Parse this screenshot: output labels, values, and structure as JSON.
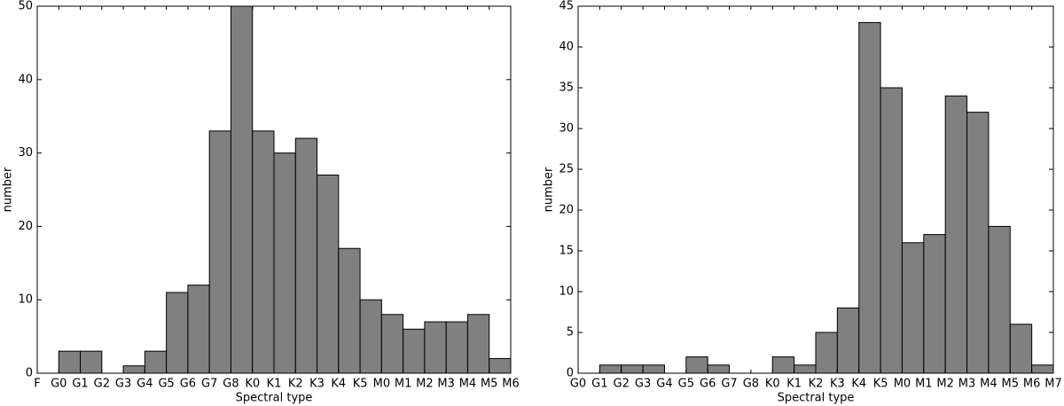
{
  "chart_data": [
    {
      "type": "histogram",
      "xlabel": "Spectral type",
      "ylabel": "number",
      "bins": [
        "F",
        "G0",
        "G1",
        "G2",
        "G3",
        "G4",
        "G5",
        "G6",
        "G7",
        "G8",
        "K0",
        "K1",
        "K2",
        "K3",
        "K4",
        "K5",
        "M0",
        "M1",
        "M2",
        "M3",
        "M4",
        "M5",
        "M6"
      ],
      "values": [
        0,
        3,
        3,
        0,
        1,
        3,
        11,
        12,
        33,
        50,
        33,
        30,
        32,
        27,
        17,
        10,
        8,
        6,
        7,
        7,
        8,
        2
      ],
      "color": "#808080",
      "ylim": [
        0,
        50
      ],
      "yticks": [
        0,
        10,
        20,
        30,
        40,
        50
      ]
    },
    {
      "type": "histogram",
      "xlabel": "Spectral type",
      "ylabel": "number",
      "bins": [
        "G0",
        "G1",
        "G2",
        "G3",
        "G4",
        "G5",
        "G6",
        "G7",
        "G8",
        "K0",
        "K1",
        "K2",
        "K3",
        "K4",
        "K5",
        "M0",
        "M1",
        "M2",
        "M3",
        "M4",
        "M5",
        "M6",
        "M7"
      ],
      "values": [
        0,
        1,
        1,
        1,
        0,
        2,
        1,
        0,
        0,
        2,
        1,
        5,
        8,
        43,
        35,
        16,
        17,
        34,
        32,
        18,
        6,
        1
      ],
      "color": "#808080",
      "ylim": [
        0,
        45
      ],
      "yticks": [
        0,
        5,
        10,
        15,
        20,
        25,
        30,
        35,
        40,
        45
      ]
    }
  ]
}
